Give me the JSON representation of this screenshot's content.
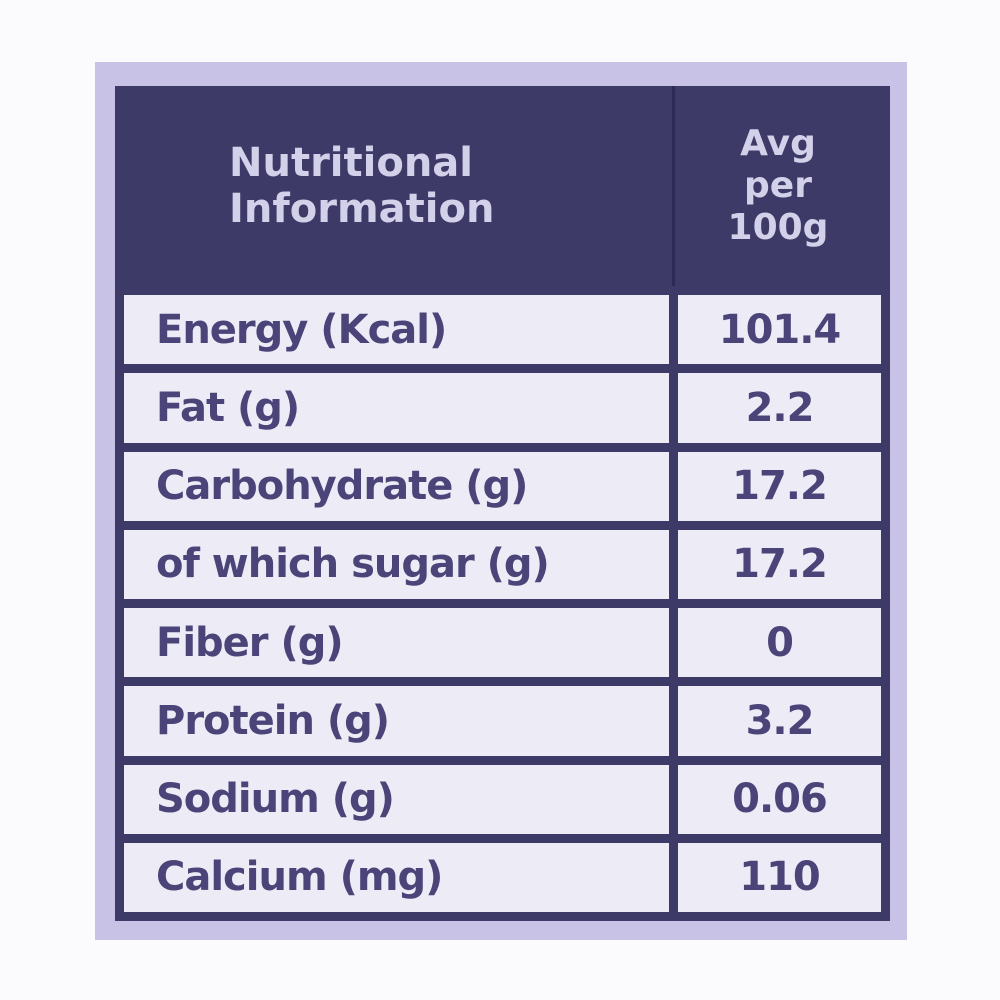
{
  "header": {
    "title_line1": "Nutritional",
    "title_line2": "Information",
    "col_line1": "Avg",
    "col_line2": "per",
    "col_line3": "100g"
  },
  "rows": [
    {
      "name": "Energy (Kcal)",
      "value": "101.4"
    },
    {
      "name": "Fat (g)",
      "value": "2.2"
    },
    {
      "name": "Carbohydrate (g)",
      "value": "17.2"
    },
    {
      "name": "of which sugar (g)",
      "value": "17.2"
    },
    {
      "name": "Fiber (g)",
      "value": "0"
    },
    {
      "name": "Protein (g)",
      "value": "3.2"
    },
    {
      "name": "Sodium (g)",
      "value": "0.06"
    },
    {
      "name": "Calcium (mg)",
      "value": "110"
    }
  ],
  "colors": {
    "background": "#c8c2e6",
    "header": "#3e3a68",
    "text": "#4b4479",
    "cell": "#edecf6"
  }
}
